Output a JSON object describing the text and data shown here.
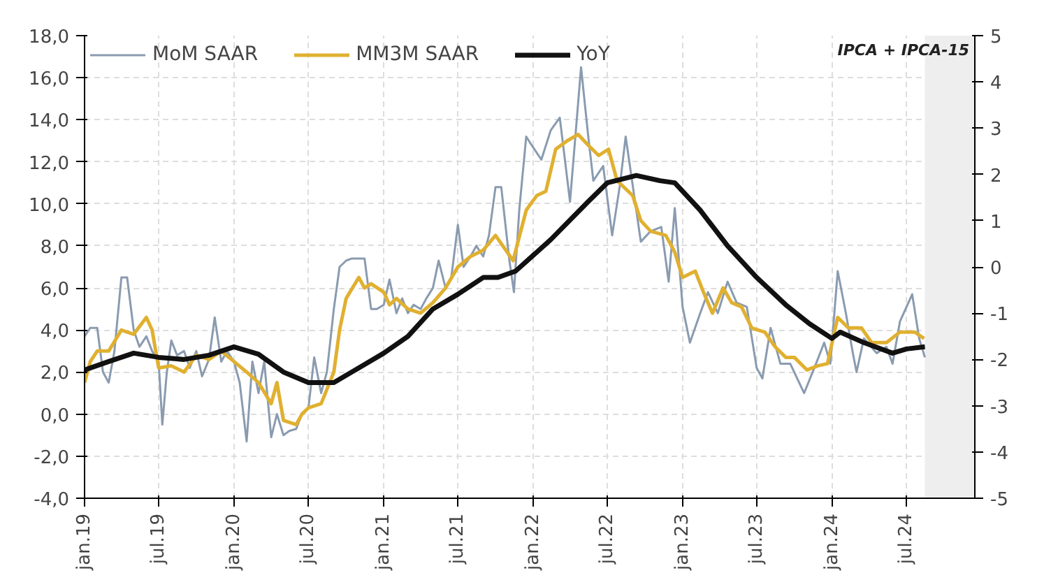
{
  "chart_data": {
    "type": "line",
    "annotations": [
      "IPCA + IPCA-15"
    ],
    "legend": "top",
    "grid": true,
    "line_style": "solid",
    "marker": "none",
    "xlim": [
      "2019-01-01",
      "2024-12-15"
    ],
    "xticks": [
      {
        "value": "2019-01-01",
        "label": "jan.19"
      },
      {
        "value": "2019-07-01",
        "label": "jul.19"
      },
      {
        "value": "2020-01-01",
        "label": "jan.20"
      },
      {
        "value": "2020-07-01",
        "label": "jul.20"
      },
      {
        "value": "2021-01-01",
        "label": "jan.21"
      },
      {
        "value": "2021-07-01",
        "label": "jul.21"
      },
      {
        "value": "2022-01-01",
        "label": "jan.22"
      },
      {
        "value": "2022-07-01",
        "label": "jul.22"
      },
      {
        "value": "2023-01-01",
        "label": "jan.23"
      },
      {
        "value": "2023-07-01",
        "label": "jul.23"
      },
      {
        "value": "2024-01-01",
        "label": "jan.24"
      },
      {
        "value": "2024-07-01",
        "label": "jul.24"
      }
    ],
    "ylim": [
      -4,
      18
    ],
    "yticks": [
      {
        "value": -4,
        "label": "-4,0"
      },
      {
        "value": -2,
        "label": "-2,0"
      },
      {
        "value": 0,
        "label": "0,0"
      },
      {
        "value": 2,
        "label": "2,0"
      },
      {
        "value": 4,
        "label": "4,0"
      },
      {
        "value": 6,
        "label": "6,0"
      },
      {
        "value": 8,
        "label": "8,0"
      },
      {
        "value": 10,
        "label": "10,0"
      },
      {
        "value": 12,
        "label": "12,0"
      },
      {
        "value": 14,
        "label": "14,0"
      },
      {
        "value": 16,
        "label": "16,0"
      },
      {
        "value": 18,
        "label": "18,0"
      }
    ],
    "y2lim": [
      -5,
      5
    ],
    "y2ticks": [
      -5,
      -4,
      -3,
      -2,
      -1,
      0,
      1,
      2,
      3,
      4,
      5
    ],
    "bands": [
      {
        "axis": "x",
        "from": "2024-08-15",
        "to": "2024-12-15",
        "label": null,
        "color": "#eeeeee"
      }
    ],
    "series": [
      {
        "name": "MoM SAAR",
        "color": "#8a9bb0",
        "x": [
          "2019-01-01",
          "2019-01-15",
          "2019-02-01",
          "2019-02-15",
          "2019-03-01",
          "2019-03-15",
          "2019-04-01",
          "2019-04-15",
          "2019-05-01",
          "2019-05-15",
          "2019-06-01",
          "2019-06-15",
          "2019-07-01",
          "2019-07-10",
          "2019-07-21",
          "2019-08-01",
          "2019-08-15",
          "2019-09-01",
          "2019-09-15",
          "2019-10-01",
          "2019-10-15",
          "2019-11-01",
          "2019-11-15",
          "2019-12-01",
          "2019-12-15",
          "2020-01-01",
          "2020-01-15",
          "2020-02-01",
          "2020-02-15",
          "2020-03-01",
          "2020-03-15",
          "2020-04-01",
          "2020-04-15",
          "2020-05-01",
          "2020-05-15",
          "2020-06-01",
          "2020-06-15",
          "2020-07-01",
          "2020-07-15",
          "2020-08-01",
          "2020-08-15",
          "2020-09-01",
          "2020-09-15",
          "2020-10-01",
          "2020-10-15",
          "2020-11-01",
          "2020-11-15",
          "2020-12-01",
          "2020-12-15",
          "2021-01-01",
          "2021-01-15",
          "2021-02-01",
          "2021-02-15",
          "2021-03-01",
          "2021-03-15",
          "2021-04-01",
          "2021-04-15",
          "2021-05-01",
          "2021-05-15",
          "2021-06-01",
          "2021-06-15",
          "2021-07-01",
          "2021-07-15",
          "2021-08-01",
          "2021-08-15",
          "2021-09-01",
          "2021-09-15",
          "2021-10-01",
          "2021-10-15",
          "2021-11-04",
          "2021-11-15",
          "2021-11-28",
          "2021-12-15",
          "2021-12-28",
          "2022-01-21",
          "2022-02-13",
          "2022-03-07",
          "2022-04-01",
          "2022-04-28",
          "2022-05-15",
          "2022-05-28",
          "2022-06-21",
          "2022-07-13",
          "2022-08-01",
          "2022-08-15",
          "2022-09-01",
          "2022-09-21",
          "2022-10-15",
          "2022-11-10",
          "2022-11-28",
          "2022-12-13",
          "2023-01-01",
          "2023-01-19",
          "2023-02-13",
          "2023-03-04",
          "2023-03-28",
          "2023-04-21",
          "2023-05-13",
          "2023-06-07",
          "2023-07-01",
          "2023-07-15",
          "2023-08-04",
          "2023-08-28",
          "2023-09-21",
          "2023-10-25",
          "2023-11-19",
          "2023-12-13",
          "2023-12-28",
          "2024-01-15",
          "2024-02-04",
          "2024-02-21",
          "2024-03-01",
          "2024-03-19",
          "2024-04-19",
          "2024-05-13",
          "2024-05-28",
          "2024-06-15",
          "2024-07-15",
          "2024-08-01",
          "2024-08-15"
        ],
        "values": [
          3.7,
          4.1,
          4.1,
          2.0,
          1.5,
          3.0,
          6.5,
          6.5,
          4.0,
          3.2,
          3.7,
          3.0,
          2.5,
          -0.5,
          2.0,
          3.5,
          2.8,
          3.0,
          2.2,
          3.0,
          1.8,
          2.6,
          4.6,
          2.5,
          3.0,
          2.5,
          1.5,
          -1.3,
          2.5,
          1.0,
          2.5,
          -1.1,
          0.0,
          -1.0,
          -0.8,
          -0.7,
          0.0,
          0.3,
          2.7,
          1.0,
          2.0,
          5.0,
          7.0,
          7.3,
          7.4,
          7.4,
          7.4,
          5.0,
          5.0,
          5.2,
          6.4,
          4.8,
          5.5,
          4.8,
          5.2,
          5.0,
          5.5,
          6.0,
          7.3,
          6.0,
          6.5,
          9.0,
          7.0,
          7.5,
          8.0,
          7.5,
          8.5,
          10.8,
          10.8,
          7.3,
          5.8,
          9.7,
          13.2,
          12.8,
          12.1,
          13.5,
          14.1,
          10.1,
          16.5,
          13.3,
          11.1,
          11.8,
          8.5,
          10.9,
          13.2,
          10.9,
          8.2,
          8.7,
          8.9,
          6.3,
          9.8,
          5.1,
          3.4,
          4.8,
          5.8,
          4.8,
          6.3,
          5.3,
          5.1,
          2.2,
          1.7,
          4.1,
          2.4,
          2.4,
          1.0,
          2.2,
          3.4,
          2.4,
          6.8,
          4.8,
          2.9,
          2.0,
          3.6,
          2.9,
          3.2,
          2.4,
          4.4,
          5.7,
          3.6,
          2.7
        ]
      },
      {
        "name": "MM3M SAAR",
        "color": "#e0b030",
        "x": [
          "2019-01-01",
          "2019-01-15",
          "2019-02-01",
          "2019-03-01",
          "2019-04-01",
          "2019-05-01",
          "2019-06-01",
          "2019-06-15",
          "2019-07-01",
          "2019-08-01",
          "2019-09-01",
          "2019-10-01",
          "2019-11-01",
          "2019-12-01",
          "2020-01-01",
          "2020-02-01",
          "2020-03-01",
          "2020-04-01",
          "2020-04-15",
          "2020-05-01",
          "2020-06-01",
          "2020-06-15",
          "2020-07-01",
          "2020-08-01",
          "2020-09-01",
          "2020-09-15",
          "2020-10-01",
          "2020-11-01",
          "2020-11-15",
          "2020-12-01",
          "2021-01-01",
          "2021-01-15",
          "2021-02-01",
          "2021-03-01",
          "2021-04-01",
          "2021-05-01",
          "2021-06-01",
          "2021-07-01",
          "2021-08-01",
          "2021-09-01",
          "2021-10-01",
          "2021-11-13",
          "2021-12-15",
          "2022-01-10",
          "2022-02-01",
          "2022-02-25",
          "2022-03-25",
          "2022-04-21",
          "2022-05-15",
          "2022-06-10",
          "2022-07-04",
          "2022-07-25",
          "2022-09-01",
          "2022-09-21",
          "2022-10-15",
          "2022-11-21",
          "2022-12-13",
          "2023-01-01",
          "2023-02-01",
          "2023-02-21",
          "2023-03-15",
          "2023-04-10",
          "2023-05-01",
          "2023-05-25",
          "2023-06-19",
          "2023-07-21",
          "2023-08-15",
          "2023-09-10",
          "2023-10-01",
          "2023-11-01",
          "2023-11-28",
          "2023-12-21",
          "2024-01-15",
          "2024-02-10",
          "2024-03-13",
          "2024-04-07",
          "2024-05-13",
          "2024-06-15",
          "2024-07-21",
          "2024-08-13"
        ],
        "values": [
          1.5,
          2.5,
          3.0,
          3.0,
          4.0,
          3.8,
          4.6,
          4.0,
          2.2,
          2.3,
          2.0,
          2.8,
          2.6,
          3.0,
          2.5,
          2.0,
          1.5,
          0.5,
          1.5,
          -0.3,
          -0.5,
          0.0,
          0.3,
          0.5,
          2.0,
          4.0,
          5.5,
          6.5,
          6.0,
          6.2,
          5.8,
          5.2,
          5.5,
          5.0,
          4.8,
          5.3,
          6.0,
          7.0,
          7.5,
          7.8,
          8.5,
          7.3,
          9.7,
          10.4,
          10.6,
          12.6,
          13.0,
          13.3,
          12.8,
          12.3,
          12.6,
          11.1,
          10.4,
          9.2,
          8.7,
          8.5,
          7.7,
          6.5,
          6.8,
          5.8,
          4.8,
          6.0,
          5.3,
          5.1,
          4.1,
          3.9,
          3.2,
          2.7,
          2.7,
          2.1,
          2.3,
          2.4,
          4.6,
          4.1,
          4.1,
          3.4,
          3.4,
          3.9,
          3.9,
          3.6
        ]
      },
      {
        "name": "YoY",
        "color": "#111111",
        "x": [
          "2019-01-01",
          "2019-03-01",
          "2019-05-01",
          "2019-07-01",
          "2019-09-01",
          "2019-11-01",
          "2020-01-01",
          "2020-03-01",
          "2020-05-01",
          "2020-07-01",
          "2020-08-01",
          "2020-09-01",
          "2020-11-01",
          "2021-01-01",
          "2021-03-01",
          "2021-05-01",
          "2021-07-01",
          "2021-09-01",
          "2021-10-07",
          "2021-11-19",
          "2022-02-13",
          "2022-05-15",
          "2022-07-01",
          "2022-09-10",
          "2022-11-07",
          "2022-12-13",
          "2023-02-13",
          "2023-04-21",
          "2023-07-01",
          "2023-09-10",
          "2023-11-07",
          "2024-01-01",
          "2024-01-21",
          "2024-03-19",
          "2024-05-28",
          "2024-07-01",
          "2024-08-15"
        ],
        "values": [
          2.1,
          2.5,
          2.9,
          2.7,
          2.6,
          2.8,
          3.2,
          2.85,
          2.0,
          1.5,
          1.5,
          1.5,
          2.2,
          2.9,
          3.7,
          5.0,
          5.7,
          6.5,
          6.5,
          6.8,
          8.3,
          10.1,
          11.0,
          11.35,
          11.1,
          11.0,
          9.7,
          8.0,
          6.5,
          5.2,
          4.3,
          3.6,
          3.9,
          3.4,
          2.9,
          3.1,
          3.2
        ]
      }
    ]
  }
}
